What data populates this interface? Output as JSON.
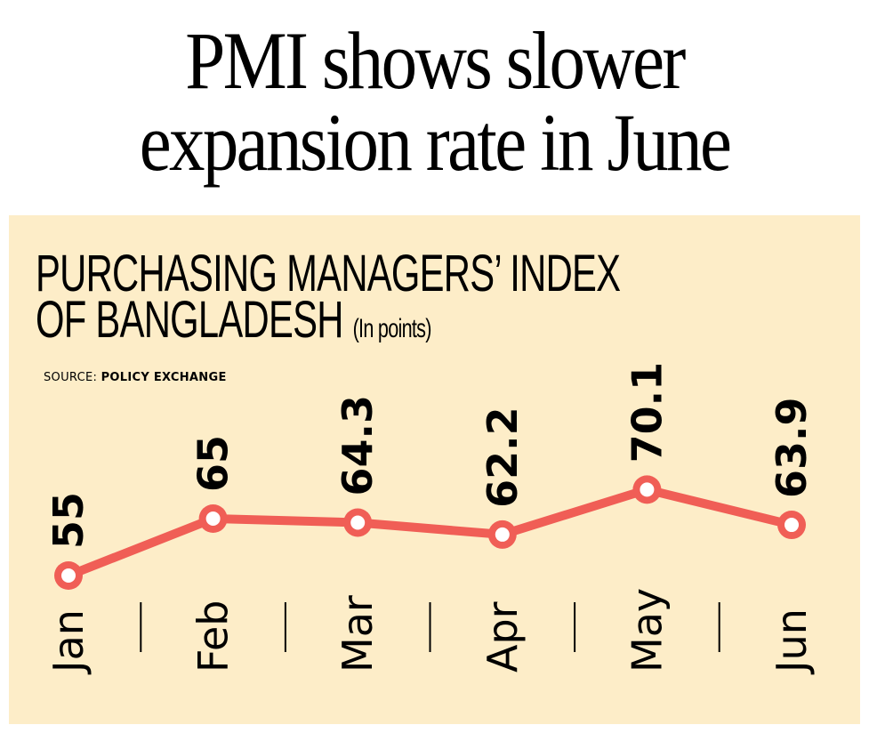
{
  "headline": {
    "line1": "PMI shows slower",
    "line2": "expansion rate in June"
  },
  "chart_data": {
    "type": "line",
    "title_line1": "PURCHASING MANAGERS’ INDEX",
    "title_line2": "OF BANGLADESH",
    "unit": "(In points)",
    "source_label": "SOURCE:",
    "source_name": "POLICY EXCHANGE",
    "categories": [
      "Jan",
      "Feb",
      "Mar",
      "Apr",
      "May",
      "Jun"
    ],
    "values": [
      55,
      65,
      64.3,
      62.2,
      70.1,
      63.9
    ],
    "data_labels": [
      "55",
      "65",
      "64.3",
      "62.2",
      "70.1",
      "63.9"
    ],
    "xlabel": "",
    "ylabel": "",
    "ylim": [
      45,
      80
    ],
    "grid": false,
    "legend": "none",
    "colors": {
      "line": "#F05E56",
      "marker_fill": "#FFFFFF",
      "background": "#FDEDC8",
      "separator": "#000000"
    }
  }
}
